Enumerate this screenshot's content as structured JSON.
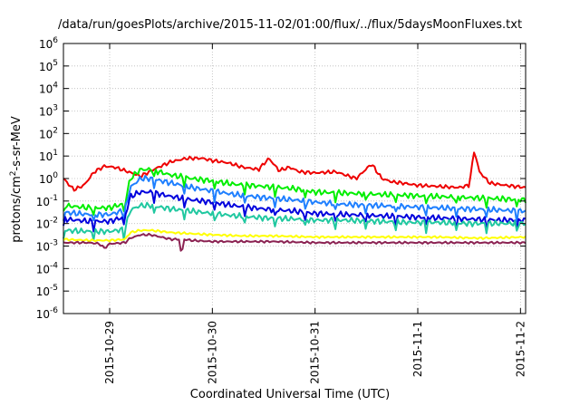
{
  "chart_data": {
    "type": "line",
    "title": "/data/run/goesPlots/archive/2015-11-02/01:00/flux/../flux/5daysMoonFluxes.txt",
    "xlabel": "Coordinated Universal Time (UTC)",
    "ylabel": {
      "base": "protons/cm",
      "exp": "2",
      "rest": "-s-sr-MeV"
    },
    "yscale": "log",
    "ylim": [
      1e-06,
      1000000.0
    ],
    "x_range_days": [
      -0.45,
      4.05
    ],
    "x_ticks": [
      {
        "label": "2015-10-29",
        "day": 0
      },
      {
        "label": "2015-10-30",
        "day": 1
      },
      {
        "label": "2015-10-31",
        "day": 2
      },
      {
        "label": "2015-11-1",
        "day": 3
      },
      {
        "label": "2015-11-2",
        "day": 4
      }
    ],
    "y_ticks": [
      {
        "base": "10",
        "exp": "6",
        "v": 6
      },
      {
        "base": "10",
        "exp": "5",
        "v": 5
      },
      {
        "base": "10",
        "exp": "4",
        "v": 4
      },
      {
        "base": "10",
        "exp": "3",
        "v": 3
      },
      {
        "base": "10",
        "exp": "2",
        "v": 2
      },
      {
        "base": "10",
        "exp": "1",
        "v": 1
      },
      {
        "base": "10",
        "exp": "0",
        "v": 0
      },
      {
        "base": "10",
        "exp": "-1",
        "v": -1
      },
      {
        "base": "10",
        "exp": "-2",
        "v": -2
      },
      {
        "base": "10",
        "exp": "-3",
        "v": -3
      },
      {
        "base": "10",
        "exp": "-4",
        "v": -4
      },
      {
        "base": "10",
        "exp": "-5",
        "v": -5
      },
      {
        "base": "10",
        "exp": "-6",
        "v": -6
      }
    ],
    "grid": true,
    "legend": "none",
    "series": [
      {
        "color": "#ee0000",
        "day": [
          -0.45,
          -0.35,
          -0.25,
          -0.15,
          -0.05,
          0.05,
          0.15,
          0.3,
          0.45,
          0.6,
          0.75,
          0.9,
          1.0,
          1.15,
          1.3,
          1.45,
          1.55,
          1.65,
          1.75,
          1.85,
          2.0,
          2.2,
          2.4,
          2.55,
          2.65,
          2.75,
          2.85,
          3.0,
          3.2,
          3.4,
          3.5,
          3.55,
          3.6,
          3.7,
          3.85,
          4.05
        ],
        "log10": [
          0.0,
          -0.5,
          -0.3,
          0.3,
          0.55,
          0.5,
          0.35,
          0.1,
          0.45,
          0.75,
          0.9,
          0.9,
          0.8,
          0.7,
          0.5,
          0.4,
          0.9,
          0.35,
          0.5,
          0.3,
          0.25,
          0.3,
          0.0,
          0.65,
          0.0,
          -0.15,
          -0.2,
          -0.3,
          -0.35,
          -0.4,
          -0.3,
          1.25,
          0.3,
          -0.2,
          -0.3,
          -0.4
        ]
      },
      {
        "color": "#00ee00",
        "day": [
          -0.45,
          -0.2,
          0.0,
          0.15,
          0.2,
          0.3,
          0.4,
          0.6,
          0.8,
          1.0,
          1.2,
          1.5,
          1.8,
          2.0,
          2.3,
          2.6,
          2.9,
          3.2,
          3.5,
          3.8,
          4.05
        ],
        "log10": [
          -1.2,
          -1.3,
          -1.3,
          -1.1,
          0.0,
          0.4,
          0.4,
          0.15,
          0.0,
          -0.1,
          -0.25,
          -0.35,
          -0.45,
          -0.6,
          -0.65,
          -0.7,
          -0.75,
          -0.8,
          -0.85,
          -0.9,
          -0.95
        ]
      },
      {
        "color": "#1e7fff",
        "day": [
          -0.45,
          -0.2,
          0.0,
          0.15,
          0.2,
          0.3,
          0.4,
          0.6,
          0.8,
          1.0,
          1.2,
          1.5,
          1.8,
          2.0,
          2.3,
          2.6,
          2.9,
          3.2,
          3.5,
          3.8,
          4.05
        ],
        "log10": [
          -1.5,
          -1.6,
          -1.6,
          -1.4,
          -0.4,
          0.0,
          0.0,
          -0.2,
          -0.4,
          -0.55,
          -0.7,
          -0.85,
          -0.95,
          -1.05,
          -1.15,
          -1.2,
          -1.25,
          -1.3,
          -1.35,
          -1.4,
          -1.45
        ]
      },
      {
        "color": "#0000dd",
        "day": [
          -0.45,
          -0.2,
          0.0,
          0.15,
          0.2,
          0.3,
          0.4,
          0.6,
          0.8,
          1.0,
          1.2,
          1.5,
          1.8,
          2.0,
          2.3,
          2.6,
          2.9,
          3.2,
          3.5,
          3.8,
          4.05
        ],
        "log10": [
          -1.8,
          -1.9,
          -1.9,
          -1.7,
          -0.8,
          -0.6,
          -0.6,
          -0.8,
          -0.95,
          -1.05,
          -1.2,
          -1.35,
          -1.45,
          -1.55,
          -1.6,
          -1.65,
          -1.7,
          -1.75,
          -1.8,
          -1.85,
          -1.85
        ]
      },
      {
        "color": "#20c8a0",
        "day": [
          -0.45,
          -0.2,
          0.0,
          0.15,
          0.2,
          0.3,
          0.4,
          0.6,
          0.8,
          1.0,
          1.2,
          1.5,
          1.8,
          2.0,
          2.3,
          2.6,
          2.9,
          3.2,
          3.5,
          3.8,
          4.05
        ],
        "log10": [
          -2.3,
          -2.35,
          -2.35,
          -2.25,
          -1.4,
          -1.2,
          -1.2,
          -1.35,
          -1.45,
          -1.55,
          -1.65,
          -1.75,
          -1.8,
          -1.85,
          -1.85,
          -1.9,
          -1.95,
          -1.95,
          -2.0,
          -2.0,
          -2.0
        ]
      },
      {
        "color": "#ffff00",
        "day": [
          -0.45,
          -0.2,
          0.0,
          0.15,
          0.2,
          0.3,
          0.4,
          0.6,
          0.8,
          1.0,
          1.3,
          1.6,
          2.0,
          2.4,
          2.8,
          3.2,
          3.6,
          4.05
        ],
        "log10": [
          -2.7,
          -2.75,
          -2.75,
          -2.7,
          -2.4,
          -2.3,
          -2.3,
          -2.4,
          -2.45,
          -2.5,
          -2.55,
          -2.55,
          -2.6,
          -2.6,
          -2.6,
          -2.6,
          -2.65,
          -2.6
        ]
      },
      {
        "color": "#8b2252",
        "day": [
          -0.45,
          -0.2,
          -0.1,
          -0.05,
          0.0,
          0.15,
          0.2,
          0.3,
          0.4,
          0.6,
          0.68,
          0.7,
          0.72,
          0.8,
          1.0,
          1.3,
          1.6,
          2.0,
          2.4,
          2.8,
          3.2,
          3.6,
          4.05
        ],
        "log10": [
          -2.85,
          -2.85,
          -2.9,
          -3.1,
          -2.9,
          -2.85,
          -2.65,
          -2.5,
          -2.5,
          -2.7,
          -2.7,
          -3.55,
          -2.7,
          -2.75,
          -2.8,
          -2.8,
          -2.8,
          -2.85,
          -2.85,
          -2.85,
          -2.85,
          -2.85,
          -2.85
        ]
      }
    ]
  }
}
